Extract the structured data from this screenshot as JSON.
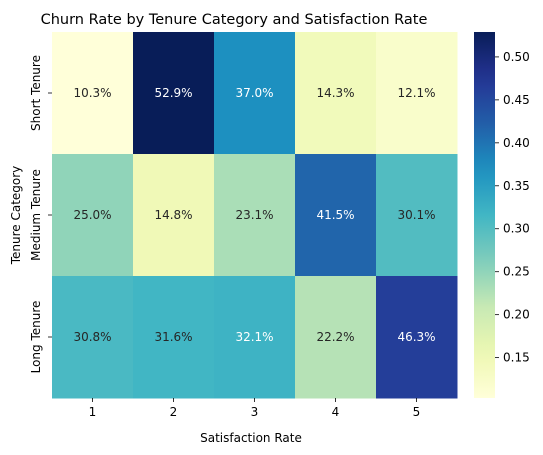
{
  "chart_data": {
    "type": "heatmap",
    "title": "Churn Rate by Tenure Category and Satisfaction Rate",
    "xlabel": "Satisfaction Rate",
    "ylabel": "Tenure Category",
    "x_categories": [
      "1",
      "2",
      "3",
      "4",
      "5"
    ],
    "y_categories": [
      "Short Tenure",
      "Medium Tenure",
      "Long Tenure"
    ],
    "values": [
      [
        0.103,
        0.529,
        0.37,
        0.143,
        0.121
      ],
      [
        0.25,
        0.148,
        0.231,
        0.415,
        0.301
      ],
      [
        0.308,
        0.316,
        0.321,
        0.222,
        0.463
      ]
    ],
    "cell_labels": [
      [
        "10.3%",
        "52.9%",
        "37.0%",
        "14.3%",
        "12.1%"
      ],
      [
        "25.0%",
        "14.8%",
        "23.1%",
        "41.5%",
        "30.1%"
      ],
      [
        "30.8%",
        "31.6%",
        "32.1%",
        "22.2%",
        "46.3%"
      ]
    ],
    "colorbar": {
      "range": [
        0.103,
        0.529
      ],
      "ticks": [
        "0.15",
        "0.20",
        "0.25",
        "0.30",
        "0.35",
        "0.40",
        "0.45",
        "0.50"
      ]
    },
    "colormap": "YlGnBu",
    "colormap_stops": [
      "#ffffd9",
      "#edf8b1",
      "#c7e9b4",
      "#7fcdbb",
      "#41b6c4",
      "#1d91c0",
      "#225ea8",
      "#253494",
      "#081d58"
    ]
  }
}
